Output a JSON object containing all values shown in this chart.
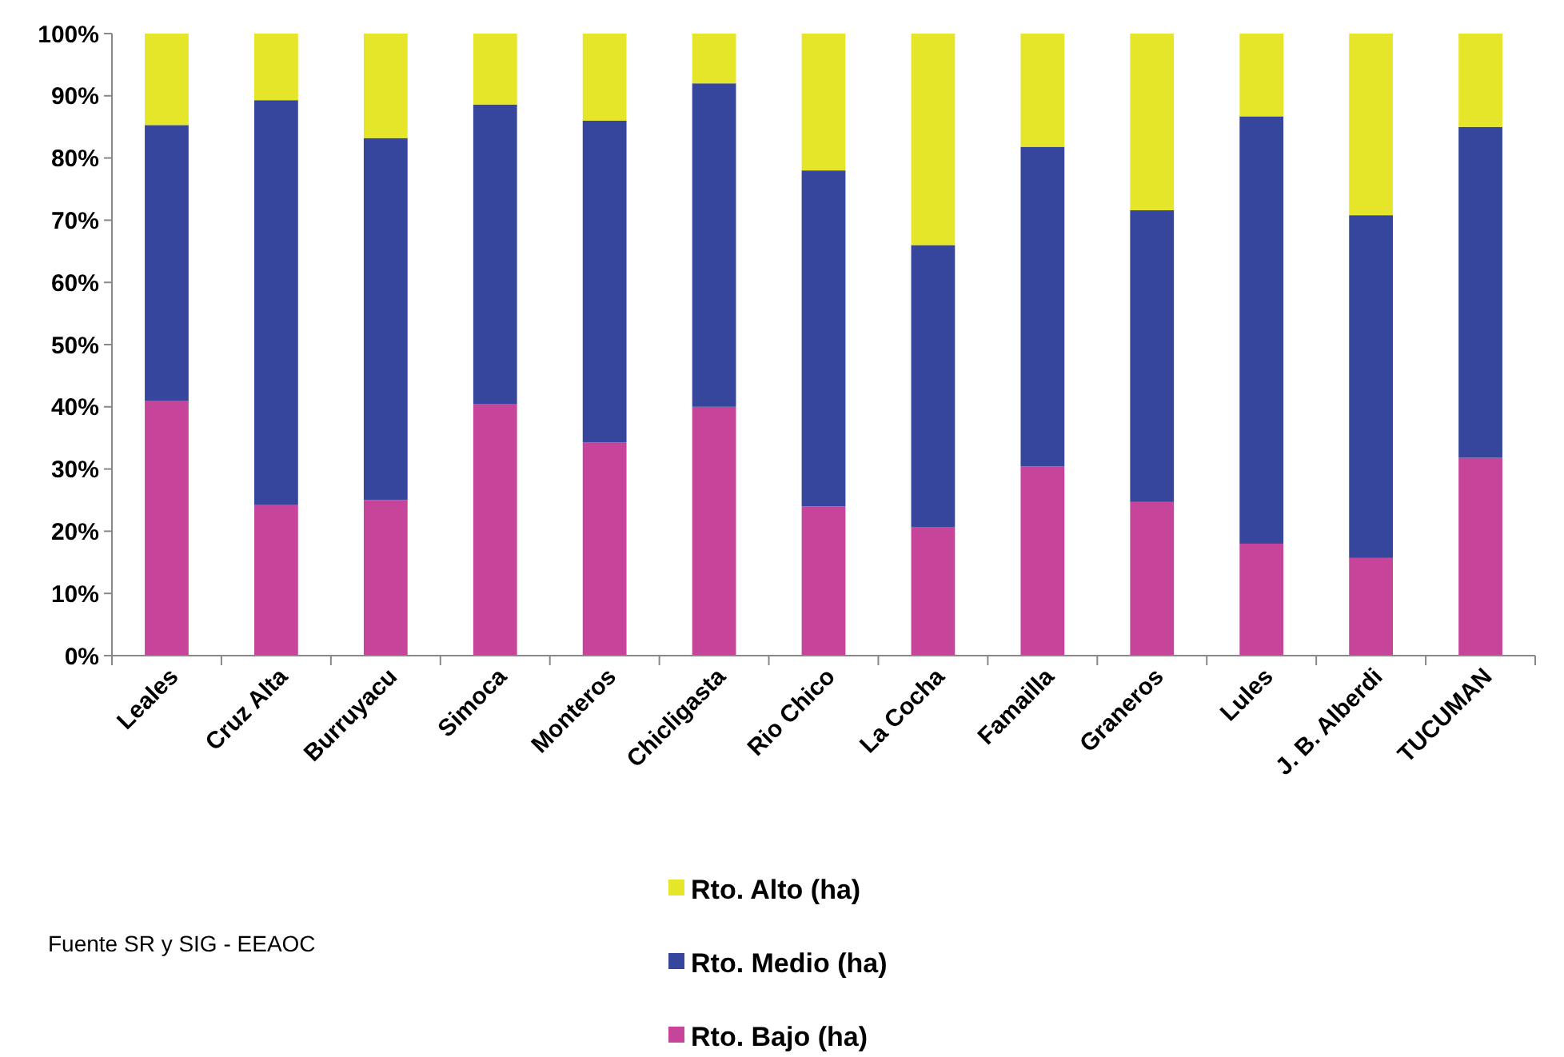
{
  "chart_data": {
    "type": "bar",
    "stacked": true,
    "categories": [
      "Leales",
      "Cruz Alta",
      "Burruyacu",
      "Simoca",
      "Monteros",
      "Chicligasta",
      "Rio Chico",
      "La Cocha",
      "Famailla",
      "Graneros",
      "Lules",
      "J. B. Alberdi",
      "TUCUMAN"
    ],
    "series": [
      {
        "name": "Rto. Bajo (ha)",
        "color": "#c6449a",
        "values": [
          41,
          24.2,
          25,
          40.4,
          34.3,
          40,
          24,
          20.7,
          30.4,
          24.7,
          18,
          15.7,
          31.8
        ]
      },
      {
        "name": "Rto. Medio (ha)",
        "color": "#36469c",
        "values": [
          44.3,
          65.1,
          58.2,
          48.2,
          51.7,
          52,
          54,
          45.3,
          51.4,
          46.9,
          68.7,
          55.1,
          53.2
        ]
      },
      {
        "name": "Rto. Alto (ha)",
        "color": "#e5e52a",
        "values": [
          14.7,
          10.7,
          16.8,
          11.4,
          14,
          8,
          22,
          34,
          18.2,
          28.4,
          13.3,
          29.2,
          15
        ]
      }
    ],
    "ylim": [
      0,
      100
    ],
    "yticks": [
      {
        "value": 0,
        "label": "0%"
      },
      {
        "value": 10,
        "label": "10%"
      },
      {
        "value": 20,
        "label": "20%"
      },
      {
        "value": 30,
        "label": "30%"
      },
      {
        "value": 40,
        "label": "40%"
      },
      {
        "value": 50,
        "label": "50%"
      },
      {
        "value": 60,
        "label": "60%"
      },
      {
        "value": 70,
        "label": "70%"
      },
      {
        "value": 80,
        "label": "80%"
      },
      {
        "value": 90,
        "label": "90%"
      },
      {
        "value": 100,
        "label": "100%"
      }
    ],
    "legend": "bottom",
    "grid": false,
    "annotations": [
      "Fuente SR y SIG - EEAOC"
    ]
  }
}
